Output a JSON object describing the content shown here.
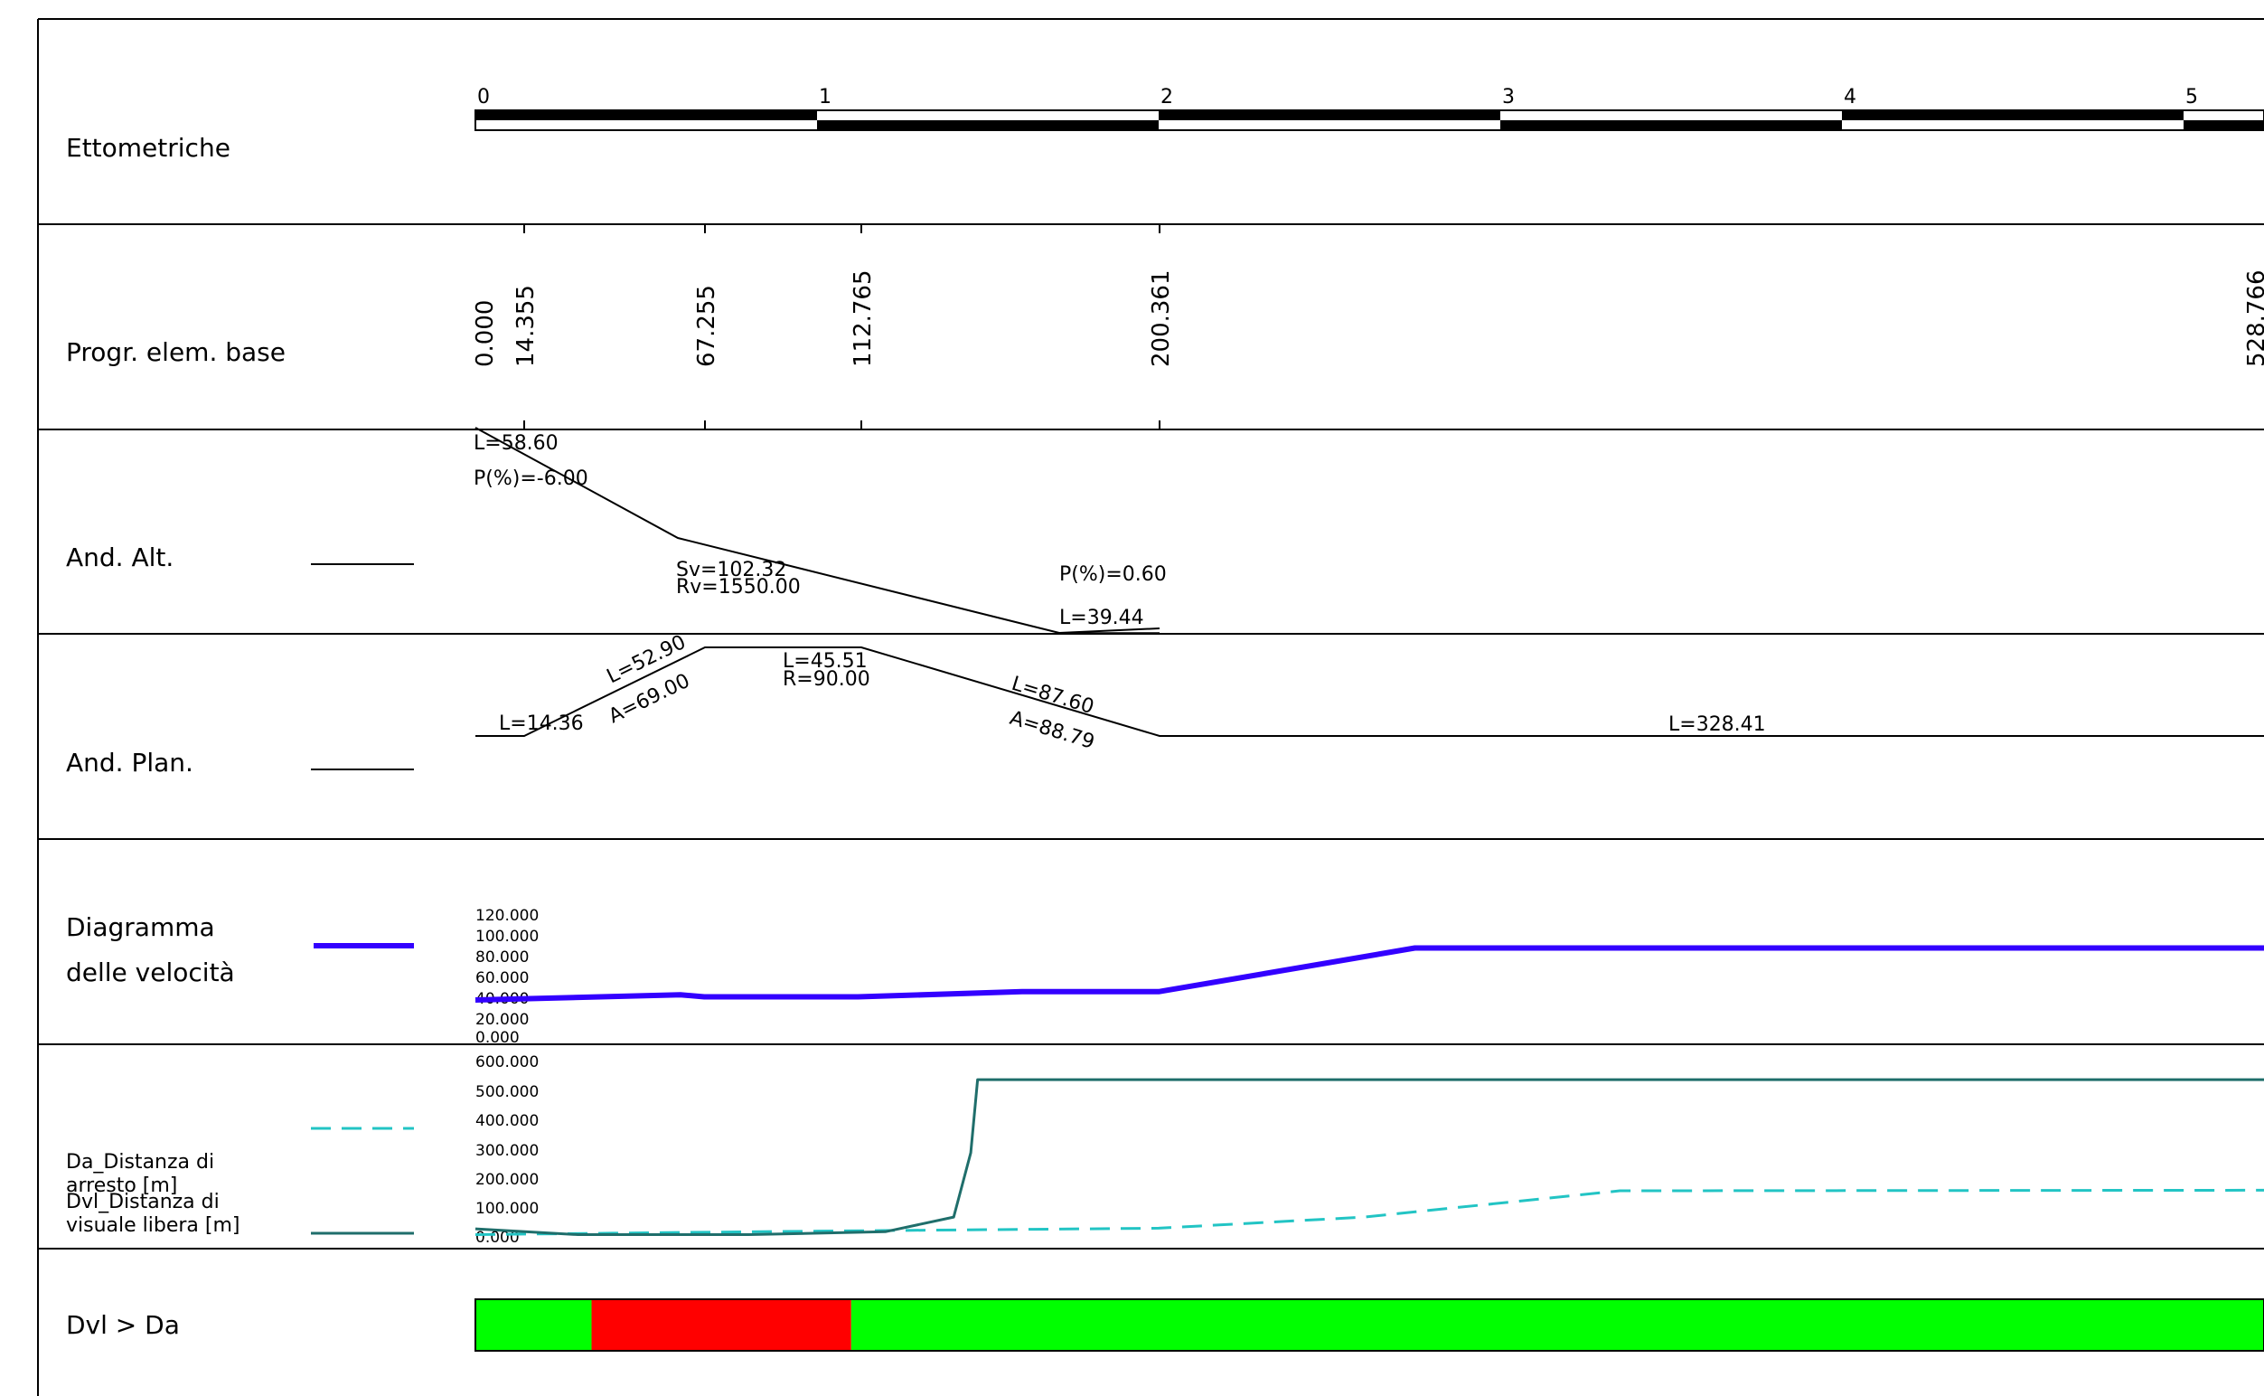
{
  "rows": {
    "ettometriche": "Ettometriche",
    "progr": "Progr. elem. base",
    "and_alt": "And. Alt.",
    "and_plan": "And. Plan.",
    "diagramma_1": "Diagramma",
    "diagramma_2": "delle velocità",
    "da_1": "Da_Distanza di",
    "da_2": "arresto [m]",
    "dvl_1": "Dvl_Distanza di",
    "dvl_2": "visuale libera [m]",
    "dvl_da": "Dvl > Da"
  },
  "hecto_labels": [
    "0",
    "1",
    "2",
    "3",
    "4",
    "5"
  ],
  "progressive_labels": [
    "0.000",
    "14.355",
    "67.255",
    "112.765",
    "200.361",
    "528.766"
  ],
  "altimetric_labels": {
    "l1": "L=58.60",
    "p1": "P(%)=-6.00",
    "sv": "Sv=102.32",
    "rv": "Rv=1550.00",
    "p2": "P(%)=0.60",
    "l2": "L=39.44"
  },
  "planimetric_labels": {
    "l1": "L=14.36",
    "l2": "L=52.90",
    "a1": "A=69.00",
    "l3": "L=45.51",
    "r1": "R=90.00",
    "l4": "L=87.60",
    "a2": "A=88.79",
    "l5": "L=328.41"
  },
  "colors": {
    "speed": "#3300ff",
    "stopping": "#22c4c4",
    "visibility": "#1f6e6b",
    "ok": "#00ff00",
    "fail": "#ff0000"
  },
  "chart_data": [
    {
      "type": "line",
      "x_unit": "m (progressiva)",
      "y_ticks": [
        "120.000",
        "100.000",
        "80.000",
        "60.000",
        "40.000",
        "20.000",
        "0.000"
      ],
      "ylim": [
        0,
        120
      ],
      "series": [
        {
          "x": [
            0,
            60,
            67,
            112,
            160,
            200,
            275,
            528
          ],
          "values": [
            40,
            45,
            43,
            43,
            48,
            48,
            90,
            90
          ]
        }
      ]
    },
    {
      "type": "line",
      "y_ticks": [
        "600.000",
        "500.000",
        "400.000",
        "300.000",
        "200.000",
        "100.000",
        "0.000"
      ],
      "ylim": [
        0,
        600
      ],
      "series": [
        {
          "x": [
            0,
            40,
            100,
            200,
            260,
            335,
            528
          ],
          "values": [
            20,
            25,
            32,
            42,
            80,
            170,
            172
          ]
        },
        {
          "x": [
            0,
            30,
            80,
            120,
            140,
            145,
            147,
            528
          ],
          "values": [
            40,
            20,
            20,
            30,
            80,
            300,
            550,
            550
          ]
        }
      ]
    },
    {
      "type": "bar",
      "segments": [
        {
          "from": 0,
          "to": 34,
          "status": "ok"
        },
        {
          "from": 34,
          "to": 110,
          "status": "fail"
        },
        {
          "from": 110,
          "to": 528,
          "status": "ok"
        }
      ]
    }
  ]
}
